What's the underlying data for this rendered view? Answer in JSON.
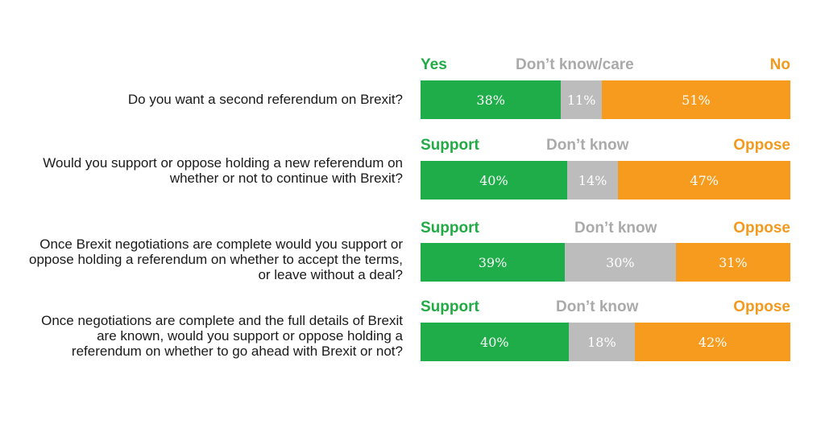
{
  "colors": {
    "yes": "#1ead48",
    "dontknow": "#bcbcbc",
    "no": "#f69b1e"
  },
  "chart_data": {
    "type": "bar",
    "stacked": true,
    "orientation": "horizontal",
    "xlim": [
      0,
      100
    ],
    "rows": [
      {
        "question": "Do you want a second referendum on Brexit?",
        "labels": [
          "Yes",
          "Don’t know/care",
          "No"
        ],
        "values": [
          38,
          11,
          51
        ],
        "value_labels": [
          "38%",
          "11%",
          "51%"
        ]
      },
      {
        "question": "Would you support or oppose holding a new referendum on whether or not to continue with Brexit?",
        "labels": [
          "Support",
          "Don’t know",
          "Oppose"
        ],
        "values": [
          40,
          14,
          47
        ],
        "value_labels": [
          "40%",
          "14%",
          "47%"
        ]
      },
      {
        "question": "Once Brexit negotiations are complete would you support or oppose holding a referendum on whether to accept the terms, or leave without a deal?",
        "labels": [
          "Support",
          "Don’t know",
          "Oppose"
        ],
        "values": [
          39,
          30,
          31
        ],
        "value_labels": [
          "39%",
          "30%",
          "31%"
        ]
      },
      {
        "question": "Once negotiations are complete and the full details of Brexit are known, would you support or oppose holding a referendum on whether to go ahead with Brexit or not?",
        "labels": [
          "Support",
          "Don’t know",
          "Oppose"
        ],
        "values": [
          40,
          18,
          42
        ],
        "value_labels": [
          "40%",
          "18%",
          "42%"
        ]
      }
    ]
  }
}
